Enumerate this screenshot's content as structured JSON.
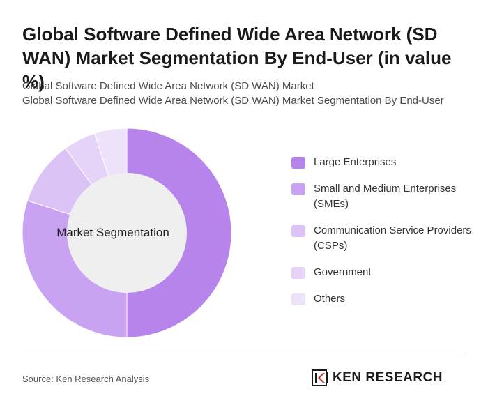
{
  "title": "Global Software Defined Wide Area Network (SD WAN) Market Segmentation By End-User (in value %)",
  "subtitle_line1": "Global Software Defined Wide Area Network (SD WAN) Market",
  "subtitle_line2": "Global Software Defined Wide Area Network (SD WAN) Market Segmentation By End-User",
  "center_label": "Market Segmentation",
  "source": "Source: Ken Research Analysis",
  "logo_text": "KEN RESEARCH",
  "chart_data": {
    "type": "pie",
    "title": "Market Segmentation",
    "series": [
      {
        "name": "Large Enterprises",
        "value": 50,
        "color": "#b784ec"
      },
      {
        "name": "Small and Medium Enterprises (SMEs)",
        "value": 30,
        "color": "#c9a3f1"
      },
      {
        "name": "Communication Service Providers (CSPs)",
        "value": 10,
        "color": "#dcc3f6"
      },
      {
        "name": "Government",
        "value": 5,
        "color": "#e6d4f8"
      },
      {
        "name": "Others",
        "value": 5,
        "color": "#ede2fa"
      }
    ],
    "legend_position": "right"
  }
}
